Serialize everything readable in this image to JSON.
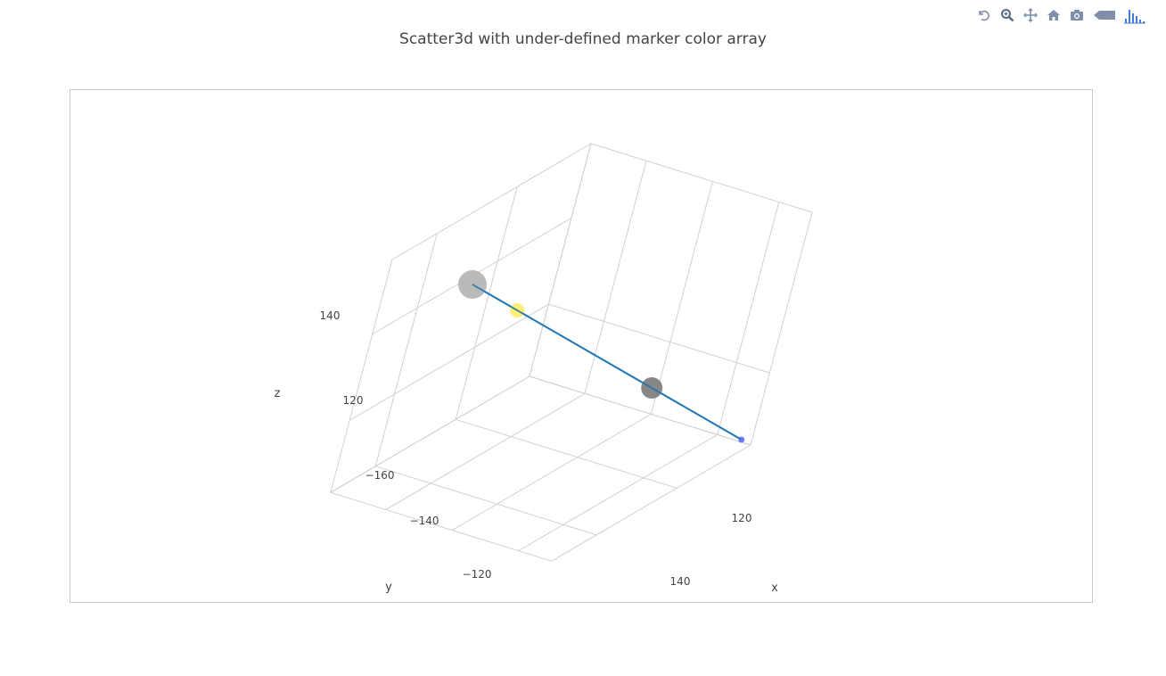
{
  "modebar": {
    "buttons": [
      {
        "name": "reset-camera-icon",
        "label": "Reset camera"
      },
      {
        "name": "zoom-icon",
        "label": "Zoom"
      },
      {
        "name": "pan-icon",
        "label": "Pan"
      },
      {
        "name": "home-icon",
        "label": "Reset to default"
      },
      {
        "name": "camera-icon",
        "label": "Download plot as png"
      },
      {
        "name": "tag-icon",
        "label": "Show closest data"
      },
      {
        "name": "plotly-logo-icon",
        "label": "Produced with Plotly"
      }
    ],
    "color": "#7f8fa9",
    "logo_color": "#447adb"
  },
  "chart_data": {
    "type": "scatter3d",
    "title": "Scatter3d with under-defined marker color array",
    "axes": {
      "x": {
        "title": "x",
        "ticks": [
          "120",
          "140"
        ]
      },
      "y": {
        "title": "y",
        "ticks": [
          "−160",
          "−140",
          "−120"
        ]
      },
      "z": {
        "title": "z",
        "ticks": [
          "120",
          "140"
        ]
      }
    },
    "line_color": "#1f77b4",
    "points": [
      {
        "x": 100,
        "y": -200,
        "z": 150,
        "color": "#b3b3b3",
        "size": 32
      },
      {
        "x": 110,
        "y": -185,
        "z": 140,
        "color": "#fde84a",
        "size": 16
      },
      {
        "x": 140,
        "y": -140,
        "z": 110,
        "color": "#7a7a7a",
        "size": 24
      },
      {
        "x": 160,
        "y": -110,
        "z": 90,
        "color": "#636efa",
        "size": 7
      }
    ]
  }
}
